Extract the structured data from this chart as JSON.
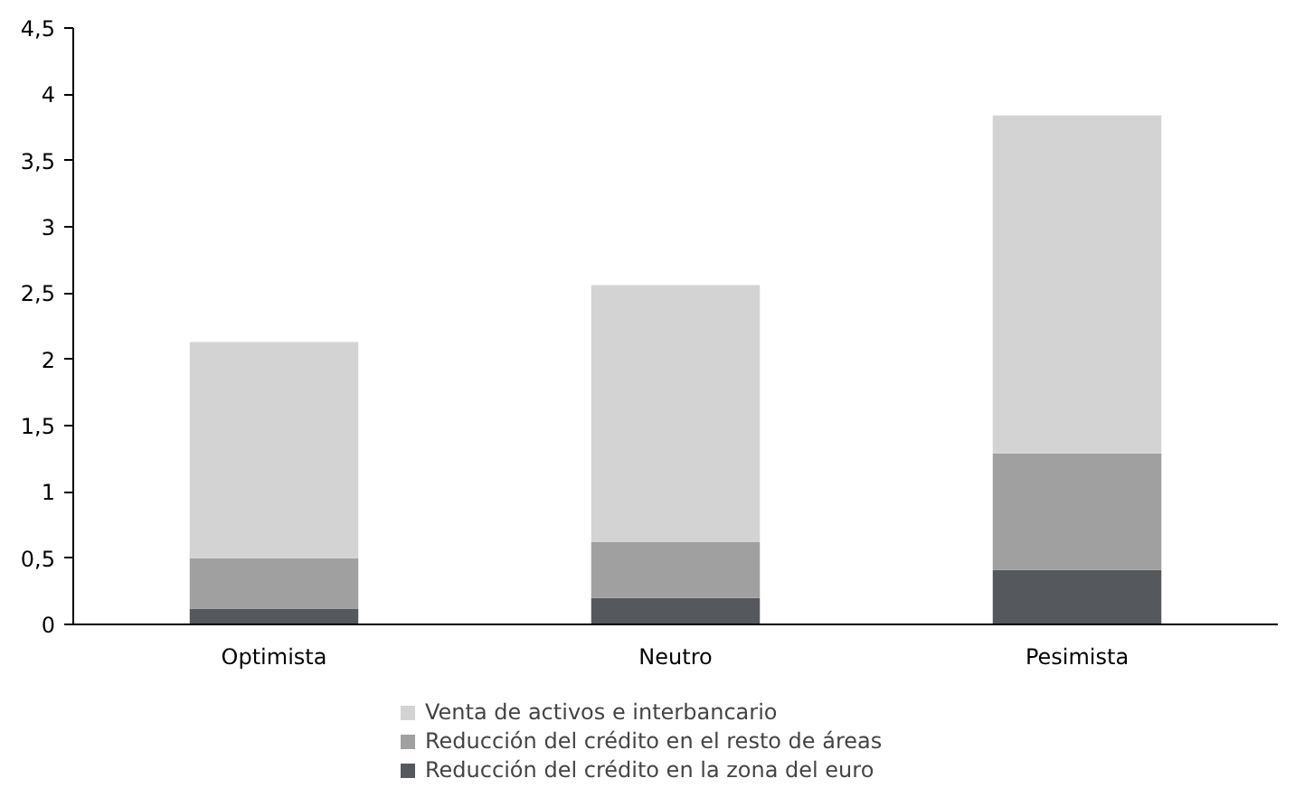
{
  "chart_data": {
    "type": "bar",
    "stacked": true,
    "categories": [
      "Optimista",
      "Neutro",
      "Pesimista"
    ],
    "series": [
      {
        "name": "Reducción del crédito en la zona del euro",
        "color": "#55595d",
        "values": [
          0.12,
          0.2,
          0.41
        ]
      },
      {
        "name": "Reducción del crédito en el resto de áreas",
        "color": "#a0a0a0",
        "values": [
          0.38,
          0.42,
          0.88
        ]
      },
      {
        "name": "Venta de activos e interbancario",
        "color": "#d3d3d3",
        "values": [
          1.63,
          1.94,
          2.55
        ]
      }
    ],
    "ylim": [
      0,
      4.5
    ],
    "yticks": [
      0,
      {
        "value": 0.5,
        "label": "0,5"
      },
      1,
      {
        "value": 1.5,
        "label": "1,5"
      },
      2,
      {
        "value": 2.5,
        "label": "2,5"
      },
      3,
      {
        "value": 3.5,
        "label": "3,5"
      },
      4,
      {
        "value": 4.5,
        "label": "4,5"
      }
    ],
    "grid": false,
    "legend": "bottom"
  }
}
